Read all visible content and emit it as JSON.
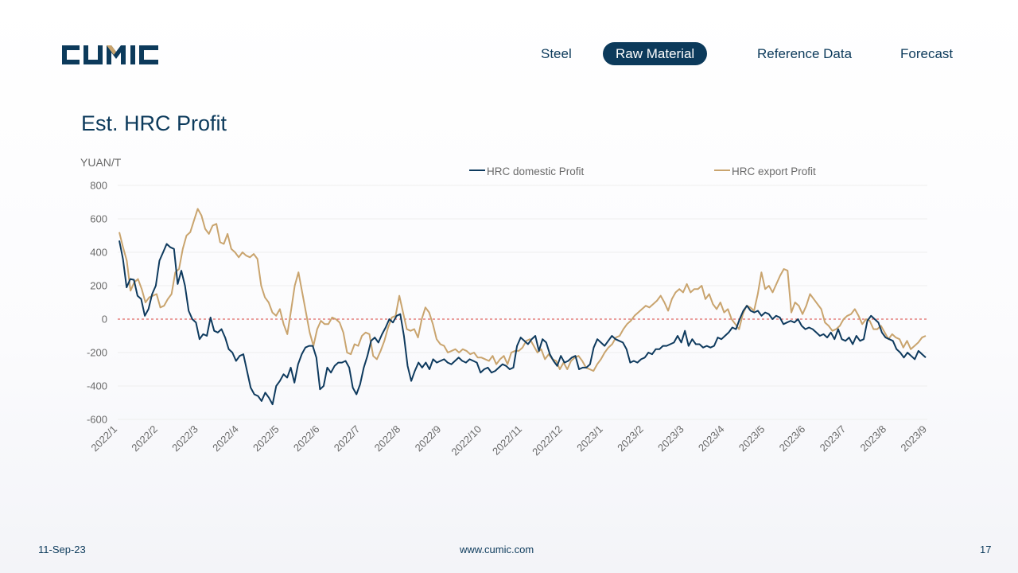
{
  "brand": {
    "logo_text": "CUMIC"
  },
  "nav": {
    "items": [
      {
        "label": "Steel",
        "active": false
      },
      {
        "label": "Raw Material",
        "active": true
      },
      {
        "label": "Reference Data",
        "active": false
      },
      {
        "label": "Forecast",
        "active": false
      }
    ]
  },
  "page": {
    "title": "Est. HRC Profit"
  },
  "colors": {
    "navy": "#0c3a5b",
    "domestic": "#0e3a5e",
    "export": "#c9a46e",
    "zero_line": "#d9433d",
    "grid": "#eeeeee"
  },
  "chart_data": {
    "type": "line",
    "title": "Est. HRC Profit",
    "ylabel": "YUAN/T",
    "xlabel": "",
    "ylim": [
      -600,
      800
    ],
    "yticks": [
      800,
      600,
      400,
      200,
      0,
      -200,
      -400,
      -600
    ],
    "ytick_labels": [
      "800",
      "600",
      "400",
      "200",
      "0",
      "-200",
      "-400",
      "-600"
    ],
    "xticks": [
      "2022/1",
      "2022/2",
      "2022/3",
      "2022/4",
      "2022/5",
      "2022/6",
      "2022/7",
      "2022/8",
      "2022/9",
      "2022/10",
      "2022/11",
      "2022/12",
      "2023/1",
      "2023/2",
      "2023/3",
      "2023/4",
      "2023/5",
      "2023/6",
      "2023/7",
      "2023/8",
      "2023/9"
    ],
    "reference_line": {
      "y": 0,
      "style": "dashed"
    },
    "legend_position": "top",
    "grid": true,
    "series": [
      {
        "name": "HRC domestic Profit",
        "values": [
          470,
          360,
          190,
          240,
          235,
          140,
          120,
          20,
          60,
          150,
          200,
          350,
          400,
          450,
          430,
          420,
          210,
          290,
          200,
          50,
          0,
          -20,
          -120,
          -90,
          -100,
          10,
          -70,
          -80,
          -60,
          -110,
          -180,
          -200,
          -250,
          -220,
          -210,
          -310,
          -410,
          -450,
          -460,
          -490,
          -440,
          -470,
          -510,
          -400,
          -370,
          -330,
          -350,
          -290,
          -380,
          -270,
          -210,
          -170,
          -160,
          -160,
          -230,
          -420,
          -400,
          -290,
          -320,
          -280,
          -260,
          -260,
          -250,
          -290,
          -410,
          -450,
          -390,
          -290,
          -220,
          -130,
          -110,
          -140,
          -90,
          -50,
          0,
          -20,
          20,
          30,
          -100,
          -280,
          -370,
          -310,
          -260,
          -290,
          -260,
          -300,
          -240,
          -260,
          -250,
          -240,
          -260,
          -270,
          -250,
          -230,
          -250,
          -260,
          -240,
          -250,
          -260,
          -320,
          -300,
          -290,
          -320,
          -310,
          -290,
          -270,
          -280,
          -300,
          -290,
          -160,
          -110,
          -130,
          -150,
          -120,
          -100,
          -190,
          -120,
          -140,
          -210,
          -250,
          -280,
          -220,
          -260,
          -250,
          -230,
          -220,
          -300,
          -290,
          -290,
          -270,
          -170,
          -120,
          -140,
          -160,
          -130,
          -100,
          -120,
          -130,
          -140,
          -180,
          -260,
          -250,
          -260,
          -240,
          -230,
          -200,
          -210,
          -180,
          -180,
          -160,
          -160,
          -150,
          -140,
          -100,
          -140,
          -70,
          -160,
          -120,
          -150,
          -150,
          -170,
          -160,
          -170,
          -160,
          -110,
          -120,
          -100,
          -80,
          -50,
          -60,
          0,
          50,
          80,
          50,
          40,
          50,
          20,
          40,
          30,
          0,
          20,
          10,
          -30,
          -20,
          -10,
          -20,
          0,
          -40,
          -60,
          -50,
          -60,
          -80,
          -100,
          -90,
          -110,
          -80,
          -120,
          -60,
          -120,
          -130,
          -110,
          -150,
          -100,
          -130,
          -120,
          -10,
          20,
          0,
          -20,
          -80,
          -110,
          -120,
          -130,
          -180,
          -200,
          -230,
          -200,
          -220,
          -240,
          -190,
          -210,
          -230
        ]
      },
      {
        "name": "HRC export Profit",
        "values": [
          520,
          430,
          350,
          170,
          220,
          240,
          180,
          100,
          130,
          140,
          150,
          70,
          80,
          120,
          150,
          280,
          300,
          420,
          500,
          520,
          590,
          660,
          620,
          540,
          510,
          560,
          570,
          460,
          450,
          510,
          420,
          400,
          370,
          400,
          380,
          370,
          390,
          360,
          200,
          130,
          100,
          40,
          20,
          60,
          -30,
          -90,
          50,
          200,
          280,
          160,
          40,
          -80,
          -160,
          -60,
          -10,
          -30,
          -30,
          10,
          0,
          -20,
          -80,
          -200,
          -210,
          -150,
          -160,
          -100,
          -80,
          -90,
          -220,
          -240,
          -190,
          -130,
          -50,
          10,
          20,
          140,
          40,
          -60,
          -70,
          -60,
          -110,
          0,
          70,
          40,
          -30,
          -120,
          -150,
          -160,
          -200,
          -190,
          -180,
          -200,
          -180,
          -190,
          -210,
          -200,
          -230,
          -230,
          -240,
          -250,
          -220,
          -270,
          -240,
          -220,
          -270,
          -200,
          -190,
          -190,
          -170,
          -130,
          -120,
          -160,
          -200,
          -180,
          -240,
          -210,
          -240,
          -250,
          -300,
          -260,
          -300,
          -250,
          -230,
          -220,
          -250,
          -290,
          -300,
          -310,
          -270,
          -240,
          -200,
          -170,
          -150,
          -110,
          -100,
          -60,
          -30,
          -10,
          20,
          40,
          60,
          80,
          70,
          90,
          110,
          140,
          100,
          50,
          120,
          160,
          180,
          160,
          210,
          160,
          180,
          180,
          200,
          120,
          150,
          90,
          60,
          100,
          40,
          60,
          0,
          -30,
          -60,
          30,
          80,
          70,
          50,
          150,
          280,
          180,
          200,
          160,
          210,
          260,
          300,
          290,
          40,
          100,
          80,
          30,
          80,
          150,
          120,
          90,
          60,
          -20,
          -40,
          -70,
          -60,
          -40,
          0,
          20,
          30,
          60,
          20,
          -30,
          0,
          -10,
          -60,
          -60,
          -40,
          -80,
          -120,
          -90,
          -110,
          -120,
          -170,
          -130,
          -180,
          -160,
          -140,
          -110,
          -100
        ]
      }
    ]
  },
  "footer": {
    "date": "11-Sep-23",
    "url": "www.cumic.com",
    "page_number": "17"
  }
}
